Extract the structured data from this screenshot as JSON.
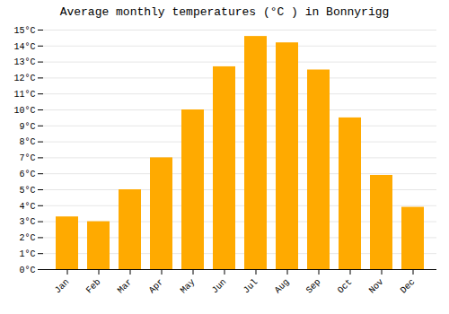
{
  "chart_data": {
    "type": "bar",
    "title": "Average monthly temperatures (°C ) in Bonnyrigg",
    "categories": [
      "Jan",
      "Feb",
      "Mar",
      "Apr",
      "May",
      "Jun",
      "Jul",
      "Aug",
      "Sep",
      "Oct",
      "Nov",
      "Dec"
    ],
    "values": [
      3.3,
      3.0,
      5.0,
      7.0,
      10.0,
      12.7,
      14.6,
      14.2,
      12.5,
      9.5,
      5.9,
      3.9
    ],
    "color": "#FFAA00",
    "ylim": [
      0,
      15
    ],
    "yticks": [
      {
        "value": 0,
        "label": "0°C"
      },
      {
        "value": 1,
        "label": "1°C"
      },
      {
        "value": 2,
        "label": "2°C"
      },
      {
        "value": 3,
        "label": "3°C"
      },
      {
        "value": 4,
        "label": "4°C"
      },
      {
        "value": 5,
        "label": "5°C"
      },
      {
        "value": 6,
        "label": "6°C"
      },
      {
        "value": 7,
        "label": "7°C"
      },
      {
        "value": 8,
        "label": "8°C"
      },
      {
        "value": 9,
        "label": "9°C"
      },
      {
        "value": 10,
        "label": "10°C"
      },
      {
        "value": 11,
        "label": "11°C"
      },
      {
        "value": 12,
        "label": "12°C"
      },
      {
        "value": 13,
        "label": "13°C"
      },
      {
        "value": 14,
        "label": "14°C"
      },
      {
        "value": 15,
        "label": "15°C"
      }
    ],
    "grid": true
  }
}
